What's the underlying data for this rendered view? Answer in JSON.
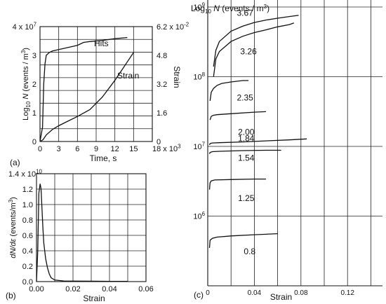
{
  "chart_data": [
    {
      "panel": "(a)",
      "type": "line",
      "xlabel": "Time, s",
      "ylabel_left": "Log10 N (events / m3)",
      "ylabel_right": "Strain",
      "xlim": [
        0,
        18000
      ],
      "ylim_left": [
        0,
        40000000
      ],
      "ylim_right": [
        0,
        0.062
      ],
      "x_ticks": [
        "0",
        "3",
        "6",
        "9",
        "12",
        "15",
        "18 x 10^3"
      ],
      "y_ticks_left": [
        "0",
        "1",
        "2",
        "3",
        "4 x 10^7"
      ],
      "y_ticks_right": [
        "0",
        "1.6",
        "3.2",
        "4.8",
        "6.2 x 10^-2"
      ],
      "grid": true,
      "series": [
        {
          "name": "Hits",
          "axis": "left",
          "x": [
            0,
            400,
            600,
            800,
            1000,
            1500,
            2000,
            4000,
            6000,
            7000,
            8000,
            10000,
            12000,
            14000
          ],
          "y": [
            0,
            5000000,
            20000000,
            27000000,
            30000000,
            31000000,
            31500000,
            32500000,
            33500000,
            34500000,
            34800000,
            35200000,
            35800000,
            36200000
          ]
        },
        {
          "name": "Strain",
          "axis": "right",
          "x": [
            0,
            500,
            1000,
            2000,
            3000,
            4000,
            6000,
            8000,
            10000,
            12000,
            13000,
            14000,
            15000
          ],
          "y": [
            0,
            0.001,
            0.0035,
            0.0065,
            0.0085,
            0.0102,
            0.0135,
            0.0172,
            0.024,
            0.033,
            0.038,
            0.043,
            0.048
          ]
        }
      ]
    },
    {
      "panel": "(b)",
      "type": "line",
      "xlabel": "Strain",
      "ylabel": "dN/dε (events/m3)",
      "xlim": [
        0,
        0.06
      ],
      "ylim": [
        0,
        14000000000
      ],
      "x_ticks": [
        "0.00",
        "0.02",
        "0.04",
        "0.06"
      ],
      "y_ticks": [
        "0.0",
        "0.2",
        "0.4",
        "0.6",
        "0.8",
        "1.0",
        "1.2",
        "1.4 x 10^10"
      ],
      "grid": true,
      "series": [
        {
          "x": [
            0,
            0.0007,
            0.0013,
            0.002,
            0.0025,
            0.003,
            0.0035,
            0.004,
            0.005,
            0.006,
            0.007,
            0.008,
            0.01,
            0.015,
            0.02,
            0.03,
            0.04,
            0.05
          ],
          "y": [
            0,
            4000000000,
            11500000000,
            12700000000,
            12000000000,
            9500000000,
            7000000000,
            5000000000,
            3000000000,
            1800000000,
            1000000000,
            500000000,
            200000000,
            80000000,
            60000000,
            50000000,
            40000000,
            40000000
          ]
        }
      ]
    },
    {
      "panel": "(c)",
      "type": "line",
      "title": "Log10 N (events / m3)",
      "xlabel": "Strain",
      "xlim": [
        0,
        0.15
      ],
      "ylim_log": [
        100000,
        1000000000
      ],
      "log_scale_y": true,
      "x_ticks": [
        "0",
        "0.04",
        "0.08",
        "0.12"
      ],
      "y_ticks": [
        "10^6",
        "10^7",
        "10^8",
        "10^9"
      ],
      "grid": true,
      "series": [
        {
          "label": "3.67",
          "x": [
            0.005,
            0.007,
            0.01,
            0.02,
            0.03,
            0.04,
            0.05,
            0.06,
            0.07,
            0.078
          ],
          "y": [
            140000000,
            240000000,
            320000000,
            450000000,
            530000000,
            600000000,
            650000000,
            690000000,
            730000000,
            760000000
          ]
        },
        {
          "label": "3.26",
          "x": [
            0.005,
            0.007,
            0.01,
            0.02,
            0.03,
            0.04,
            0.05,
            0.06,
            0.07,
            0.074
          ],
          "y": [
            100000000,
            180000000,
            230000000,
            320000000,
            380000000,
            430000000,
            470000000,
            520000000,
            560000000,
            590000000
          ]
        },
        {
          "label": "2.35",
          "x": [
            0.002,
            0.003,
            0.005,
            0.008,
            0.012,
            0.02,
            0.03,
            0.035
          ],
          "y": [
            45000000,
            60000000,
            68000000,
            75000000,
            80000000,
            84000000,
            88000000,
            88000000
          ]
        },
        {
          "label": "2.00",
          "x": [
            0.002,
            0.003,
            0.005,
            0.008,
            0.02,
            0.04,
            0.05
          ],
          "y": [
            24000000,
            27000000,
            28000000,
            28500000,
            29500000,
            31000000,
            31500000
          ]
        },
        {
          "label": "1.84",
          "x": [
            0.0015,
            0.002,
            0.004,
            0.01,
            0.03,
            0.05,
            0.07,
            0.085
          ],
          "y": [
            10500000,
            11000000,
            11200000,
            11300000,
            11600000,
            12000000,
            12400000,
            12800000
          ]
        },
        {
          "label": "1.54",
          "x": [
            0.0015,
            0.002,
            0.004,
            0.01,
            0.03,
            0.05,
            0.063
          ],
          "y": [
            7800000,
            8200000,
            8400000,
            8500000,
            8700000,
            8800000,
            8800000
          ]
        },
        {
          "label": "1.25",
          "x": [
            0.0015,
            0.002,
            0.003,
            0.006,
            0.02,
            0.04,
            0.05
          ],
          "y": [
            2400000,
            3000000,
            3200000,
            3300000,
            3350000,
            3400000,
            3400000
          ]
        },
        {
          "label": "0.8",
          "x": [
            0.0015,
            0.002,
            0.004,
            0.008,
            0.02,
            0.04,
            0.06
          ],
          "y": [
            350000,
            450000,
            480000,
            500000,
            520000,
            540000,
            560000
          ]
        }
      ]
    }
  ]
}
